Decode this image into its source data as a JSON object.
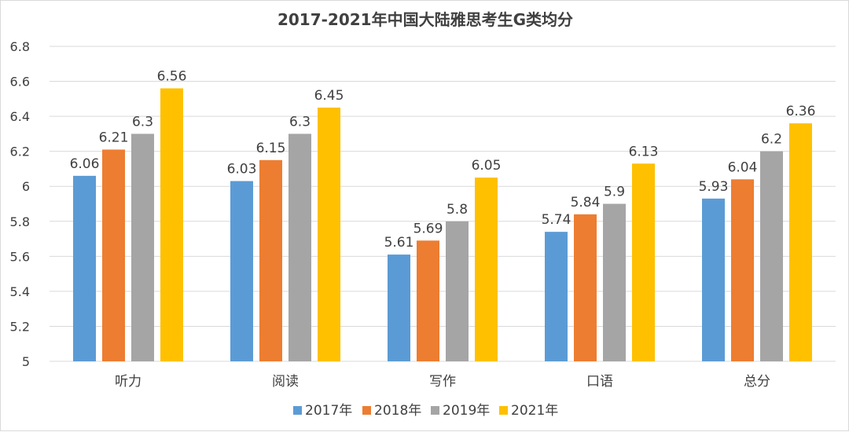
{
  "chart_data": {
    "type": "bar",
    "title": "2017-2021年中国大陆雅思考生G类均分",
    "categories": [
      "听力",
      "阅读",
      "写作",
      "口语",
      "总分"
    ],
    "series": [
      {
        "name": "2017年",
        "color": "#5b9bd5",
        "values": [
          6.06,
          6.03,
          5.61,
          5.74,
          5.93
        ],
        "labels": [
          "6.06",
          "6.03",
          "5.61",
          "5.74",
          "5.93"
        ]
      },
      {
        "name": "2018年",
        "color": "#ed7d31",
        "values": [
          6.21,
          6.15,
          5.69,
          5.84,
          6.04
        ],
        "labels": [
          "6.21",
          "6.15",
          "5.69",
          "5.84",
          "6.04"
        ]
      },
      {
        "name": "2019年",
        "color": "#a5a5a5",
        "values": [
          6.3,
          6.3,
          5.8,
          5.9,
          6.2
        ],
        "labels": [
          "6.3",
          "6.3",
          "5.8",
          "5.9",
          "6.2"
        ]
      },
      {
        "name": "2021年",
        "color": "#ffc000",
        "values": [
          6.56,
          6.45,
          6.05,
          6.13,
          6.36
        ],
        "labels": [
          "6.56",
          "6.45",
          "6.05",
          "6.13",
          "6.36"
        ]
      }
    ],
    "ylim": [
      5,
      6.8
    ],
    "yticks": [
      "5",
      "5.2",
      "5.4",
      "5.6",
      "5.8",
      "6",
      "6.2",
      "6.4",
      "6.6",
      "6.8"
    ],
    "xlabel": "",
    "ylabel": "",
    "grid": true,
    "legend": "bottom"
  }
}
